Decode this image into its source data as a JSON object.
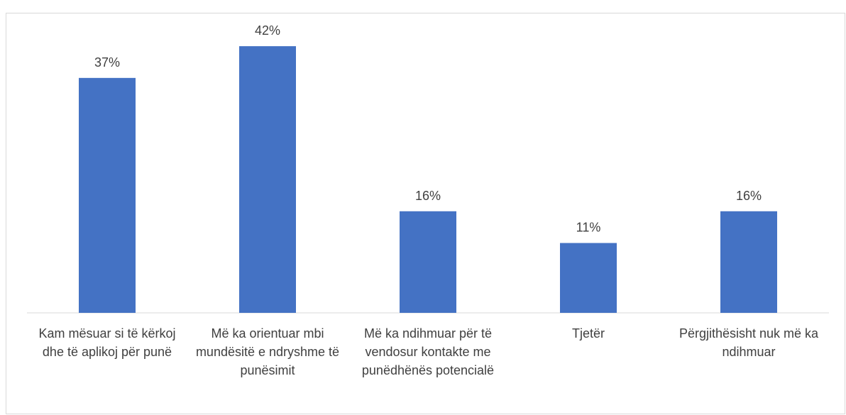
{
  "chart_data": {
    "type": "bar",
    "categories": [
      "Kam mësuar si të kërkoj dhe të aplikoj për punë",
      "Më ka orientuar mbi mundësitë e ndryshme të punësimit",
      "Më ka ndihmuar për të vendosur kontakte me punëdhënës potencialë",
      "Tjetër",
      "Përgjithësisht nuk më ka ndihmuar"
    ],
    "values": [
      37,
      42,
      16,
      11,
      16
    ],
    "value_labels": [
      "37%",
      "42%",
      "16%",
      "11%",
      "16%"
    ],
    "color": "#4472c4"
  }
}
